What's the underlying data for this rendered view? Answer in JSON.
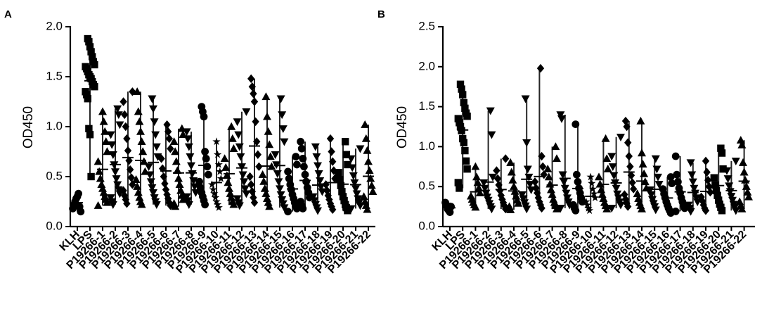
{
  "chart_data": [
    {
      "panel": "A",
      "type": "scatter",
      "ylabel": "OD450",
      "ylim": [
        0,
        2.0
      ],
      "yticks": [
        "0.0",
        "0.5",
        "1.0",
        "1.5",
        "2.0"
      ],
      "ytick_values": [
        0,
        0.5,
        1.0,
        1.5,
        2.0
      ],
      "categories": [
        "KLH",
        "LPS",
        "P19266-1",
        "P19266-2",
        "P19266-3",
        "P19266-4",
        "P19266-5",
        "P19266-6",
        "P19266-7",
        "P19266-8",
        "P19266-9",
        "P19266-10",
        "P19266-11",
        "P19266-12",
        "P19266-13",
        "P19266-14",
        "P19266-15",
        "P19266-16",
        "P19266-17",
        "P19266-18",
        "P19266-19",
        "P19266-20",
        "P19266-21",
        "P19266-22"
      ],
      "markers": [
        "circle",
        "square",
        "triangle",
        "triangle-down",
        "diamond",
        "triangle",
        "triangle-down",
        "diamond",
        "triangle",
        "triangle-down",
        "circle",
        "star",
        "triangle",
        "triangle-down",
        "diamond",
        "triangle",
        "triangle-down",
        "circle",
        "circle",
        "triangle-down",
        "diamond",
        "square",
        "triangle-down",
        "triangle"
      ],
      "series": [
        {
          "name": "KLH",
          "values": [
            0.18,
            0.22,
            0.25,
            0.28,
            0.3,
            0.33,
            0.2,
            0.15
          ]
        },
        {
          "name": "LPS",
          "values": [
            1.88,
            1.85,
            1.8,
            1.75,
            1.7,
            1.65,
            1.62,
            1.6,
            1.58,
            1.55,
            1.52,
            1.5,
            1.48,
            1.45,
            1.42,
            1.4,
            1.35,
            1.32,
            1.28,
            0.98,
            0.92,
            0.5
          ]
        },
        {
          "name": "P19266-1",
          "values": [
            1.15,
            1.05,
            0.95,
            0.85,
            0.75,
            0.65,
            0.55,
            0.48,
            0.42,
            0.38,
            0.34,
            0.3,
            0.27,
            0.24,
            0.21
          ]
        },
        {
          "name": "P19266-2",
          "values": [
            1.18,
            1.12,
            1.02,
            0.92,
            0.82,
            0.72,
            0.62,
            0.55,
            0.48,
            0.42,
            0.37,
            0.33,
            0.29,
            0.25,
            0.22
          ]
        },
        {
          "name": "P19266-3",
          "values": [
            1.35,
            1.25,
            1.12,
            1.0,
            0.88,
            0.76,
            0.66,
            0.57,
            0.49,
            0.42,
            0.36,
            0.31,
            0.27,
            0.23
          ]
        },
        {
          "name": "P19266-4",
          "values": [
            1.35,
            1.15,
            1.05,
            0.95,
            0.85,
            0.75,
            0.65,
            0.55,
            0.47,
            0.4,
            0.34,
            0.29,
            0.25,
            0.22
          ]
        },
        {
          "name": "P19266-5",
          "values": [
            1.28,
            1.18,
            1.05,
            0.92,
            0.8,
            0.7,
            0.6,
            0.52,
            0.45,
            0.39,
            0.34,
            0.29,
            0.25,
            0.22
          ]
        },
        {
          "name": "P19266-6",
          "values": [
            1.02,
            0.95,
            0.88,
            0.78,
            0.68,
            0.58,
            0.5,
            0.43,
            0.37,
            0.32,
            0.28,
            0.24,
            0.21
          ]
        },
        {
          "name": "P19266-7",
          "values": [
            0.98,
            0.92,
            0.85,
            0.75,
            0.65,
            0.56,
            0.48,
            0.42,
            0.36,
            0.31,
            0.27,
            0.23,
            0.2
          ]
        },
        {
          "name": "P19266-8",
          "values": [
            0.95,
            0.88,
            0.8,
            0.7,
            0.61,
            0.53,
            0.46,
            0.4,
            0.34,
            0.3,
            0.26,
            0.22
          ]
        },
        {
          "name": "P19266-9",
          "values": [
            1.2,
            1.15,
            1.1,
            0.75,
            0.68,
            0.6,
            0.52,
            0.45,
            0.39,
            0.34,
            0.3,
            0.26,
            0.22
          ]
        },
        {
          "name": "P19266-10",
          "values": [
            0.85,
            0.72,
            0.62,
            0.55,
            0.48,
            0.42,
            0.37,
            0.33,
            0.29,
            0.25,
            0.22,
            0.19
          ]
        },
        {
          "name": "P19266-11",
          "values": [
            1.0,
            0.88,
            0.78,
            0.68,
            0.59,
            0.51,
            0.44,
            0.38,
            0.33,
            0.29,
            0.25,
            0.22
          ]
        },
        {
          "name": "P19266-12",
          "values": [
            1.15,
            1.05,
            0.92,
            0.8,
            0.7,
            0.6,
            0.52,
            0.45,
            0.38,
            0.33,
            0.28,
            0.24,
            0.21
          ]
        },
        {
          "name": "P19266-13",
          "values": [
            1.48,
            1.4,
            1.33,
            1.25,
            1.05,
            0.85,
            0.72,
            0.6,
            0.5,
            0.42,
            0.35,
            0.29,
            0.24
          ]
        },
        {
          "name": "P19266-14",
          "values": [
            1.3,
            1.1,
            0.95,
            0.82,
            0.7,
            0.6,
            0.52,
            0.45,
            0.38,
            0.33,
            0.28,
            0.24,
            0.2
          ]
        },
        {
          "name": "P19266-15",
          "values": [
            1.28,
            1.12,
            0.98,
            0.85,
            0.72,
            0.62,
            0.53,
            0.45,
            0.38,
            0.32,
            0.27,
            0.23,
            0.19
          ]
        },
        {
          "name": "P19266-16",
          "values": [
            0.7,
            0.62,
            0.55,
            0.48,
            0.42,
            0.37,
            0.32,
            0.28,
            0.24,
            0.21,
            0.18,
            0.15
          ]
        },
        {
          "name": "P19266-17",
          "values": [
            0.85,
            0.78,
            0.68,
            0.6,
            0.52,
            0.45,
            0.39,
            0.34,
            0.29,
            0.25,
            0.21,
            0.18
          ]
        },
        {
          "name": "P19266-18",
          "values": [
            0.8,
            0.7,
            0.61,
            0.53,
            0.46,
            0.4,
            0.35,
            0.3,
            0.26,
            0.22,
            0.19,
            0.16
          ]
        },
        {
          "name": "P19266-19",
          "values": [
            0.88,
            0.75,
            0.65,
            0.56,
            0.48,
            0.42,
            0.36,
            0.31,
            0.27,
            0.23,
            0.2,
            0.17
          ]
        },
        {
          "name": "P19266-20",
          "values": [
            0.85,
            0.72,
            0.62,
            0.54,
            0.47,
            0.41,
            0.35,
            0.3,
            0.26,
            0.22,
            0.19,
            0.16
          ]
        },
        {
          "name": "P19266-21",
          "values": [
            0.78,
            0.68,
            0.59,
            0.51,
            0.44,
            0.38,
            0.33,
            0.28,
            0.24,
            0.21,
            0.18
          ]
        },
        {
          "name": "P19266-22",
          "values": [
            1.02,
            0.88,
            0.76,
            0.65,
            0.56,
            0.48,
            0.41,
            0.35,
            0.3,
            0.25,
            0.21,
            0.17
          ]
        }
      ]
    },
    {
      "panel": "B",
      "type": "scatter",
      "ylabel": "OD450",
      "ylim": [
        0,
        2.5
      ],
      "yticks": [
        "0.0",
        "0.5",
        "1.0",
        "1.5",
        "2.0",
        "2.5"
      ],
      "ytick_values": [
        0,
        0.5,
        1.0,
        1.5,
        2.0,
        2.5
      ],
      "categories": [
        "KLH",
        "LPS",
        "P19266-1",
        "P19266-2",
        "P19266-3",
        "P19266-4",
        "P19266-5",
        "P19266-6",
        "P19266-7",
        "P19266-8",
        "P19266-9",
        "P19266-10",
        "P19266-11",
        "P19266-12",
        "P19266-13",
        "P19266-14",
        "P19266-15",
        "P19266-16",
        "P19266-17",
        "P19266-18",
        "P19266-19",
        "P19266-20",
        "P19266-21",
        "P19266-22"
      ],
      "markers": [
        "circle",
        "square",
        "triangle",
        "triangle-down",
        "diamond",
        "triangle",
        "triangle-down",
        "diamond",
        "triangle",
        "triangle-down",
        "circle",
        "star",
        "triangle",
        "triangle-down",
        "diamond",
        "triangle",
        "triangle-down",
        "circle",
        "circle",
        "triangle-down",
        "diamond",
        "square",
        "triangle-down",
        "triangle"
      ],
      "series": [
        {
          "name": "KLH",
          "values": [
            0.3,
            0.26,
            0.22,
            0.2,
            0.18,
            0.25
          ]
        },
        {
          "name": "LPS",
          "values": [
            1.78,
            1.72,
            1.65,
            1.55,
            1.48,
            1.42,
            1.38,
            1.35,
            1.3,
            1.25,
            1.2,
            1.1,
            1.05,
            0.95,
            0.82,
            0.72,
            0.55,
            0.48
          ]
        },
        {
          "name": "P19266-1",
          "values": [
            0.75,
            0.62,
            0.55,
            0.48,
            0.42,
            0.38,
            0.34,
            0.3,
            0.27,
            0.24
          ]
        },
        {
          "name": "P19266-2",
          "values": [
            1.45,
            1.15,
            0.62,
            0.55,
            0.48,
            0.42,
            0.37,
            0.33,
            0.29,
            0.25,
            0.22
          ]
        },
        {
          "name": "P19266-3",
          "values": [
            0.85,
            0.7,
            0.6,
            0.52,
            0.45,
            0.39,
            0.34,
            0.3,
            0.26,
            0.22
          ]
        },
        {
          "name": "P19266-4",
          "values": [
            0.8,
            0.68,
            0.58,
            0.5,
            0.44,
            0.38,
            0.33,
            0.29,
            0.25,
            0.21
          ]
        },
        {
          "name": "P19266-5",
          "values": [
            1.6,
            1.05,
            0.72,
            0.62,
            0.53,
            0.46,
            0.4,
            0.35,
            0.3,
            0.26,
            0.22
          ]
        },
        {
          "name": "P19266-6",
          "values": [
            1.98,
            0.88,
            0.75,
            0.65,
            0.56,
            0.48,
            0.42,
            0.36,
            0.31,
            0.27,
            0.23
          ]
        },
        {
          "name": "P19266-7",
          "values": [
            1.0,
            0.85,
            0.72,
            0.62,
            0.53,
            0.46,
            0.4,
            0.34,
            0.3,
            0.26,
            0.22
          ]
        },
        {
          "name": "P19266-8",
          "values": [
            1.4,
            1.35,
            0.65,
            0.56,
            0.48,
            0.42,
            0.36,
            0.31,
            0.27,
            0.23
          ]
        },
        {
          "name": "P19266-9",
          "values": [
            1.28,
            0.65,
            0.56,
            0.48,
            0.42,
            0.36,
            0.31,
            0.27,
            0.23,
            0.2
          ]
        },
        {
          "name": "P19266-10",
          "values": [
            0.62,
            0.54,
            0.47,
            0.41,
            0.36,
            0.31,
            0.27,
            0.23,
            0.2
          ]
        },
        {
          "name": "P19266-11",
          "values": [
            1.1,
            0.85,
            0.72,
            0.62,
            0.53,
            0.46,
            0.4,
            0.35,
            0.3,
            0.26,
            0.22
          ]
        },
        {
          "name": "P19266-12",
          "values": [
            1.12,
            0.88,
            0.75,
            0.64,
            0.55,
            0.48,
            0.41,
            0.36,
            0.31,
            0.27,
            0.23
          ]
        },
        {
          "name": "P19266-13",
          "values": [
            1.32,
            1.25,
            1.05,
            0.88,
            0.75,
            0.64,
            0.55,
            0.47,
            0.4,
            0.34,
            0.29,
            0.25
          ]
        },
        {
          "name": "P19266-14",
          "values": [
            1.32,
            0.92,
            0.78,
            0.66,
            0.56,
            0.48,
            0.41,
            0.35,
            0.3,
            0.26,
            0.22
          ]
        },
        {
          "name": "P19266-15",
          "values": [
            0.85,
            0.72,
            0.62,
            0.53,
            0.46,
            0.4,
            0.34,
            0.29,
            0.25,
            0.21
          ]
        },
        {
          "name": "P19266-16",
          "values": [
            0.62,
            0.54,
            0.47,
            0.41,
            0.36,
            0.31,
            0.27,
            0.23,
            0.2,
            0.17
          ]
        },
        {
          "name": "P19266-17",
          "values": [
            0.88,
            0.65,
            0.56,
            0.48,
            0.42,
            0.36,
            0.31,
            0.27,
            0.23,
            0.19
          ]
        },
        {
          "name": "P19266-18",
          "values": [
            0.8,
            0.65,
            0.56,
            0.48,
            0.42,
            0.36,
            0.31,
            0.27,
            0.23,
            0.19
          ]
        },
        {
          "name": "P19266-19",
          "values": [
            0.82,
            0.68,
            0.58,
            0.5,
            0.43,
            0.37,
            0.32,
            0.27,
            0.23,
            0.2
          ]
        },
        {
          "name": "P19266-20",
          "values": [
            0.98,
            0.92,
            0.72,
            0.61,
            0.52,
            0.45,
            0.39,
            0.33,
            0.28,
            0.24,
            0.2
          ]
        },
        {
          "name": "P19266-21",
          "values": [
            0.82,
            0.7,
            0.6,
            0.51,
            0.44,
            0.38,
            0.33,
            0.28,
            0.24,
            0.2
          ]
        },
        {
          "name": "P19266-22",
          "values": [
            1.08,
            1.02,
            0.8,
            0.68,
            0.58,
            0.5,
            0.43,
            0.37,
            0.31,
            0.26,
            0.22
          ]
        }
      ]
    }
  ]
}
